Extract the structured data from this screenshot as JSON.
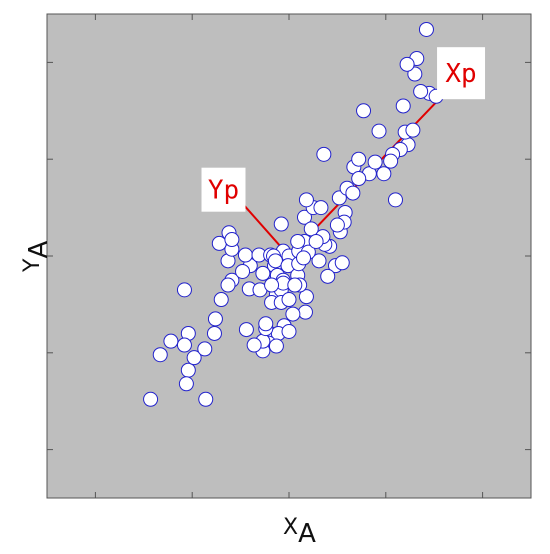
{
  "chart_data": {
    "type": "scatter",
    "title": "",
    "xlabel": {
      "main": "X",
      "sub": "A"
    },
    "ylabel": {
      "main": "Y",
      "sub": "A"
    },
    "xlim": [
      -2.5,
      2.5
    ],
    "ylim": [
      -2.5,
      2.5
    ],
    "tick_labels_visible": false,
    "grid": false,
    "background_color": "#bebebe",
    "marker": {
      "shape": "circle",
      "fill": "#ffffff",
      "edge_color": "#2222cc"
    },
    "annotation_color": "#e00000",
    "annotations": [
      {
        "text": "Xp",
        "line": [
          [
            0.0,
            0.0
          ],
          [
            1.55,
            1.62
          ]
        ]
      },
      {
        "text": "Yp",
        "line": [
          [
            0.0,
            0.0
          ],
          [
            -0.47,
            0.53
          ]
        ]
      }
    ],
    "x": [
      -1.43,
      -1.33,
      -1.22,
      -1.04,
      -1.08,
      -1.04,
      -1.06,
      -0.98,
      -1.08,
      -0.86,
      -0.87,
      -0.77,
      -0.76,
      -0.7,
      -0.63,
      -0.41,
      -0.44,
      -0.59,
      -0.59,
      -0.62,
      -0.63,
      -0.4,
      -0.45,
      -0.31,
      -0.19,
      -0.15,
      -0.12,
      -0.06,
      -0.06,
      0.0,
      -0.16,
      -0.14,
      -0.01,
      -0.27,
      -0.13,
      -0.18,
      -0.08,
      0.09,
      0.18,
      0.17,
      -0.2,
      -0.05,
      -0.06,
      -0.08,
      -0.11,
      0.0,
      -0.21,
      -0.13,
      0.16,
      -0.27,
      -0.27,
      -0.36,
      -0.24,
      -0.24,
      0.11,
      0.04,
      0.1,
      -0.08,
      0.16,
      0.25,
      0.18,
      0.42,
      0.53,
      0.52,
      0.6,
      0.67,
      0.83,
      0.72,
      0.77,
      0.89,
      0.98,
      1.18,
      1.23,
      1.1,
      1.2,
      1.28,
      1.3,
      1.45,
      1.52,
      1.32,
      1.42,
      1.36,
      1.22,
      1.15,
      1.07,
      1.05,
      0.93,
      0.36,
      0.72,
      0.66,
      0.58,
      0.33,
      0.23,
      0.09,
      0.31,
      0.37,
      0.48,
      0.4,
      0.55,
      0.57,
      0.5,
      0.35,
      0.2,
      0.1,
      0.28,
      0.15,
      0.06,
      0.0,
      -0.72,
      -0.59,
      -0.48,
      -0.3,
      -0.18
    ],
    "y": [
      -1.48,
      -1.02,
      -0.88,
      -0.8,
      -0.92,
      -1.18,
      -1.32,
      -1.05,
      -0.35,
      -1.48,
      -0.96,
      -0.8,
      -0.65,
      -0.45,
      -0.05,
      -0.34,
      -0.76,
      -0.25,
      0.07,
      0.24,
      -0.3,
      -0.1,
      0.01,
      0.01,
      0.01,
      -0.1,
      -0.2,
      0.05,
      -0.25,
      0.0,
      0.0,
      -0.05,
      -0.1,
      -0.18,
      -0.4,
      -0.48,
      -0.35,
      -0.2,
      -0.42,
      -0.58,
      -0.8,
      -0.72,
      -0.28,
      -0.48,
      -0.8,
      -0.78,
      -0.9,
      -0.93,
      0.15,
      -0.98,
      -0.88,
      -0.92,
      -0.75,
      -0.7,
      -0.3,
      -0.6,
      0.05,
      0.33,
      0.4,
      0.5,
      0.58,
      0.1,
      0.25,
      0.6,
      0.7,
      0.92,
      0.85,
      1.0,
      1.5,
      0.97,
      0.85,
      1.55,
      1.15,
      0.58,
      1.28,
      1.3,
      1.88,
      1.68,
      1.65,
      2.04,
      2.34,
      1.7,
      1.98,
      1.1,
      1.05,
      0.98,
      1.29,
      1.05,
      0.8,
      0.65,
      0.45,
      0.5,
      0.28,
      0.15,
      -0.05,
      0.12,
      -0.1,
      -0.21,
      -0.07,
      0.35,
      0.32,
      0.2,
      0.04,
      -0.08,
      0.15,
      -0.02,
      -0.3,
      -0.45,
      0.13,
      0.17,
      -0.16,
      -0.35,
      -0.3
    ]
  }
}
